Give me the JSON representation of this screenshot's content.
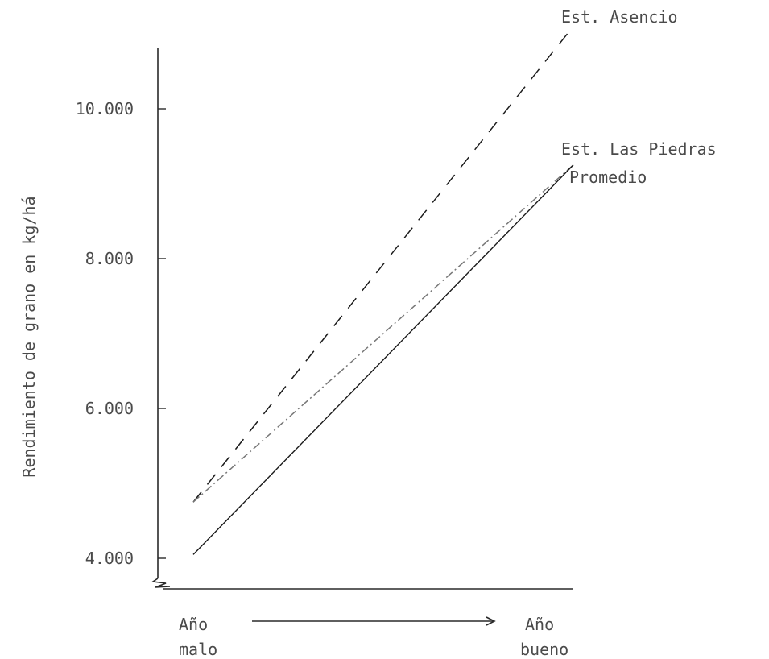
{
  "chart_data": {
    "type": "line",
    "ylabel": "Rendimiento de grano en kg/há",
    "ylim": [
      3600,
      10800
    ],
    "yticks": [
      "4.000",
      "6.000",
      "8.000",
      "10.000"
    ],
    "ytick_values": [
      4000,
      6000,
      8000,
      10000
    ],
    "categories": [
      {
        "line1": "Año",
        "line2": "malo"
      },
      {
        "line1": "Año",
        "line2": "bueno"
      }
    ],
    "series": [
      {
        "name": "Est. Asencio",
        "style": "dashed",
        "color": "#1a1a1a",
        "values": [
          4750,
          11100
        ]
      },
      {
        "name": "Est. Las Piedras",
        "style": "dashdot",
        "color": "#777777",
        "values": [
          4750,
          9250
        ]
      },
      {
        "name": "Promedio",
        "style": "solid",
        "color": "#1a1a1a",
        "values": [
          4050,
          9250
        ]
      }
    ],
    "grid": false,
    "legend": "labels at line ends, right"
  }
}
